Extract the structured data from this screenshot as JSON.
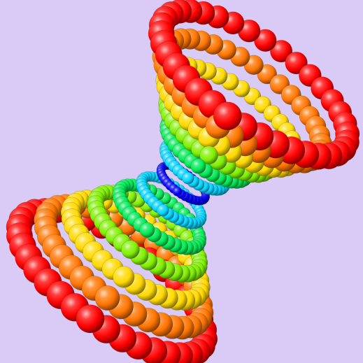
{
  "scene": {
    "subject": "hyperboloid-of-spheres",
    "background": "#d9caf6",
    "levels": 13,
    "balls_per_ring": 36,
    "color_ramp": [
      "#ff0000",
      "#ff8c00",
      "#ffff00",
      "#00e000",
      "#00ffff",
      "#0000ff"
    ],
    "outline_color": "#2a2a2a"
  }
}
